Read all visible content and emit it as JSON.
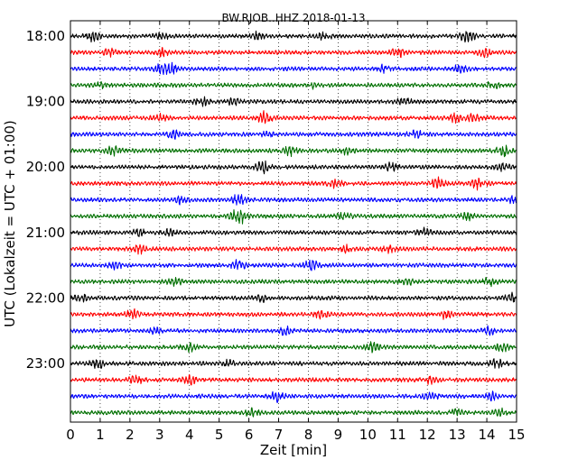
{
  "chart_data": {
    "type": "line",
    "title": "BW.RJOB..HHZ 2018-01-13",
    "xlabel": "Zeit  [min]",
    "ylabel": "UTC (Lokalzeit = UTC + 01:00)",
    "xlim": [
      0,
      15
    ],
    "x_ticks": [
      "0",
      "1",
      "2",
      "3",
      "4",
      "5",
      "6",
      "7",
      "8",
      "9",
      "10",
      "11",
      "12",
      "13",
      "14",
      "15"
    ],
    "y_ticks": [
      "18:00",
      "19:00",
      "20:00",
      "21:00",
      "22:00",
      "23:00"
    ],
    "y_tick_rows": [
      0,
      4,
      8,
      12,
      16,
      20
    ],
    "row_start_times": [
      "18:00",
      "18:15",
      "18:30",
      "18:45",
      "19:00",
      "19:15",
      "19:30",
      "19:45",
      "20:00",
      "20:15",
      "20:30",
      "20:45",
      "21:00",
      "21:15",
      "21:30",
      "21:45",
      "22:00",
      "22:15",
      "22:30",
      "22:45",
      "23:00",
      "23:15",
      "23:30",
      "23:45"
    ],
    "trace_colors": [
      "#000000",
      "#ff0000",
      "#0000ff",
      "#007000"
    ],
    "grid": "vertical dotted at each minute",
    "bursts": [
      [
        {
          "t": 0.75,
          "a": 0.9
        },
        {
          "t": 3.05,
          "a": 0.6
        },
        {
          "t": 6.3,
          "a": 0.6
        },
        {
          "t": 8.55,
          "a": 0.6
        },
        {
          "t": 13.35,
          "a": 1.0
        }
      ],
      [
        {
          "t": 1.3,
          "a": 0.6
        },
        {
          "t": 3.1,
          "a": 0.6
        },
        {
          "t": 11.0,
          "a": 0.7
        },
        {
          "t": 13.95,
          "a": 0.6
        }
      ],
      [
        {
          "t": 3.0,
          "a": 0.7
        },
        {
          "t": 3.4,
          "a": 0.9
        },
        {
          "t": 10.5,
          "a": 0.5
        },
        {
          "t": 13.1,
          "a": 0.6
        }
      ],
      [
        {
          "t": 1.1,
          "a": 0.5
        },
        {
          "t": 8.1,
          "a": 0.5
        },
        {
          "t": 14.2,
          "a": 0.5
        }
      ],
      [
        {
          "t": 4.4,
          "a": 0.8
        },
        {
          "t": 5.5,
          "a": 0.5
        },
        {
          "t": 11.2,
          "a": 0.6
        }
      ],
      [
        {
          "t": 3.0,
          "a": 0.6
        },
        {
          "t": 6.55,
          "a": 1.0
        },
        {
          "t": 12.95,
          "a": 0.8
        },
        {
          "t": 13.55,
          "a": 0.6
        }
      ],
      [
        {
          "t": 3.45,
          "a": 0.7
        },
        {
          "t": 6.7,
          "a": 0.6
        },
        {
          "t": 11.6,
          "a": 0.6
        }
      ],
      [
        {
          "t": 1.45,
          "a": 0.7
        },
        {
          "t": 7.4,
          "a": 0.9
        },
        {
          "t": 9.3,
          "a": 0.5
        },
        {
          "t": 14.55,
          "a": 1.1
        }
      ],
      [
        {
          "t": 6.45,
          "a": 1.0
        },
        {
          "t": 10.8,
          "a": 0.6
        },
        {
          "t": 14.5,
          "a": 0.6
        }
      ],
      [
        {
          "t": 8.9,
          "a": 0.6
        },
        {
          "t": 12.35,
          "a": 1.0
        },
        {
          "t": 13.7,
          "a": 0.9
        }
      ],
      [
        {
          "t": 3.7,
          "a": 0.6
        },
        {
          "t": 5.65,
          "a": 0.9
        },
        {
          "t": 14.95,
          "a": 0.6
        }
      ],
      [
        {
          "t": 5.65,
          "a": 1.5
        },
        {
          "t": 9.2,
          "a": 0.5
        },
        {
          "t": 13.35,
          "a": 0.6
        }
      ],
      [
        {
          "t": 2.35,
          "a": 0.6
        },
        {
          "t": 3.35,
          "a": 0.5
        },
        {
          "t": 11.9,
          "a": 0.6
        }
      ],
      [
        {
          "t": 2.3,
          "a": 0.7
        },
        {
          "t": 9.3,
          "a": 0.6
        },
        {
          "t": 10.7,
          "a": 0.5
        }
      ],
      [
        {
          "t": 1.5,
          "a": 0.6
        },
        {
          "t": 5.65,
          "a": 0.8
        },
        {
          "t": 8.1,
          "a": 0.9
        }
      ],
      [
        {
          "t": 3.5,
          "a": 0.5
        },
        {
          "t": 11.3,
          "a": 0.5
        },
        {
          "t": 14.1,
          "a": 0.6
        }
      ],
      [
        {
          "t": 0.35,
          "a": 0.7
        },
        {
          "t": 6.4,
          "a": 0.6
        },
        {
          "t": 14.85,
          "a": 0.7
        }
      ],
      [
        {
          "t": 2.1,
          "a": 0.7
        },
        {
          "t": 8.45,
          "a": 0.6
        },
        {
          "t": 12.6,
          "a": 0.6
        }
      ],
      [
        {
          "t": 2.9,
          "a": 0.6
        },
        {
          "t": 7.2,
          "a": 0.6
        },
        {
          "t": 14.05,
          "a": 0.6
        }
      ],
      [
        {
          "t": 4.0,
          "a": 0.6
        },
        {
          "t": 10.15,
          "a": 0.7
        },
        {
          "t": 14.5,
          "a": 0.7
        }
      ],
      [
        {
          "t": 0.9,
          "a": 0.9
        },
        {
          "t": 5.3,
          "a": 0.6
        },
        {
          "t": 14.3,
          "a": 0.7
        }
      ],
      [
        {
          "t": 2.2,
          "a": 0.6
        },
        {
          "t": 4.0,
          "a": 0.8
        },
        {
          "t": 12.1,
          "a": 0.6
        }
      ],
      [
        {
          "t": 6.95,
          "a": 0.9
        },
        {
          "t": 12.1,
          "a": 0.6
        },
        {
          "t": 14.2,
          "a": 0.6
        }
      ],
      [
        {
          "t": 6.1,
          "a": 0.6
        },
        {
          "t": 13.0,
          "a": 0.7
        },
        {
          "t": 14.5,
          "a": 0.6
        }
      ]
    ]
  }
}
